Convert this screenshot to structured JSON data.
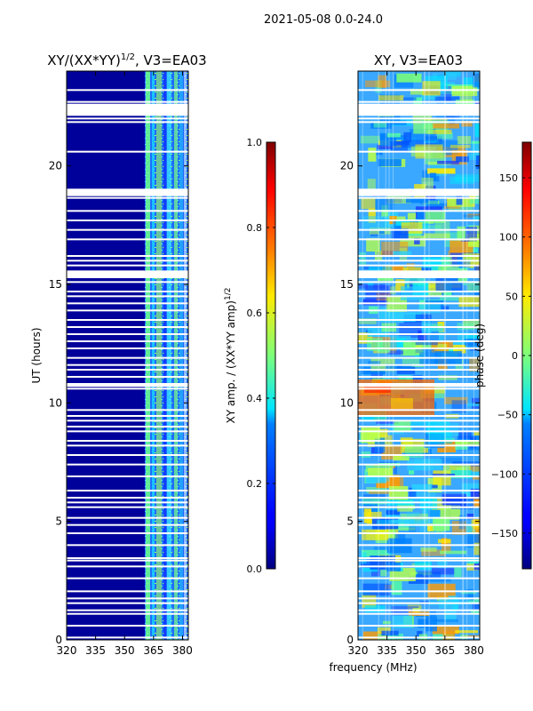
{
  "figure": {
    "suptitle": "2021-05-08 0.0-24.0",
    "xlabel": "frequency (MHz)"
  },
  "chart_data": [
    {
      "type": "heatmap",
      "title_main": "XY/(XX*YY)",
      "title_exp": "1/2",
      "title_tail": ", V3=EA03",
      "ylabel": "UT (hours)",
      "xlim": [
        320,
        383
      ],
      "ylim": [
        0,
        24
      ],
      "xticks": [
        320,
        335,
        350,
        365,
        380
      ],
      "yticks": [
        0,
        5,
        10,
        15,
        20
      ],
      "colorbar": {
        "label_main": "XY amp. / (XX*YY amp)",
        "label_exp": "1/2",
        "range": [
          0.0,
          1.0
        ],
        "ticks": [
          "0.0",
          "0.2",
          "0.4",
          "0.6",
          "0.8",
          "1.0"
        ],
        "tick_values": [
          0.0,
          0.2,
          0.4,
          0.6,
          0.8,
          1.0
        ]
      }
    },
    {
      "type": "heatmap",
      "title_main": "XY, V3=EA03",
      "xlim": [
        320,
        383
      ],
      "ylim": [
        0,
        24
      ],
      "xticks": [
        320,
        335,
        350,
        365,
        380
      ],
      "yticks": [
        0,
        5,
        10,
        15,
        20
      ],
      "colorbar": {
        "label": "phase (deg)",
        "range": [
          -180,
          180
        ],
        "ticks": [
          "150",
          "100",
          "50",
          "0",
          "−50",
          "−100",
          "−150"
        ],
        "tick_values": [
          150,
          100,
          50,
          0,
          -50,
          -100,
          -150
        ]
      }
    }
  ],
  "flagged_ut_hours": [
    0.1,
    0.6,
    1.1,
    1.25,
    1.55,
    1.75,
    2.05,
    2.6,
    3.1,
    3.35,
    3.45,
    4.0,
    4.5,
    4.85,
    5.15,
    5.6,
    5.8,
    6.0,
    6.3,
    6.9,
    7.4,
    7.8,
    8.2,
    8.4,
    8.8,
    9.0,
    9.25,
    9.45,
    9.7,
    10.6,
    10.8,
    11.1,
    11.4,
    11.6,
    11.9,
    12.3,
    12.6,
    12.9,
    13.2,
    13.5,
    13.9,
    14.2,
    14.5,
    14.7,
    15.1,
    15.3,
    15.55,
    15.8,
    16.0,
    16.2,
    16.9,
    17.3,
    17.7,
    18.1,
    18.65,
    18.8,
    19.0,
    20.6,
    21.85,
    22.0,
    22.15,
    22.5,
    22.7,
    23.2
  ]
}
